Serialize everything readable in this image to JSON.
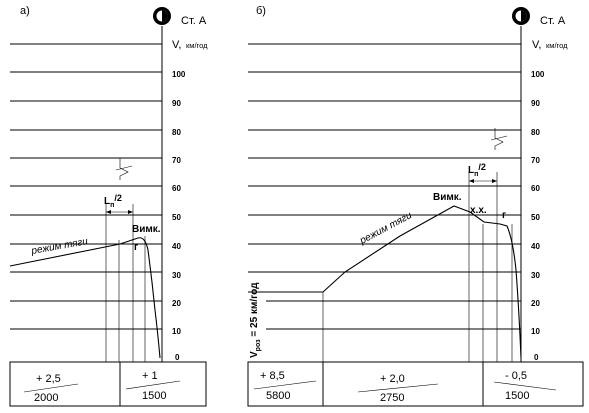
{
  "panels": [
    {
      "label": "а)",
      "station": "Ст. А",
      "axis_title": "V,",
      "axis_unit": "км/год",
      "ticks": [
        "100",
        "90",
        "80",
        "70",
        "60",
        "50",
        "40",
        "30",
        "20",
        "10",
        "0"
      ],
      "Ln_label": "L",
      "Ln_sub": "п",
      "Ln_den": "/2",
      "mode_label": "режим тяги",
      "off_label": "Вимк.",
      "g_label": "г",
      "profile": [
        {
          "slope": "+ 2,5",
          "length": "2000"
        },
        {
          "slope": "+ 1",
          "length": "1500"
        }
      ]
    },
    {
      "label": "б)",
      "station": "Ст. А",
      "axis_title": "V,",
      "axis_unit": "км/год",
      "ticks": [
        "100",
        "90",
        "80",
        "70",
        "60",
        "50",
        "40",
        "30",
        "20",
        "10",
        "0"
      ],
      "Ln_label": "L",
      "Ln_sub": "п",
      "Ln_den": "/2",
      "mode_label": "режим тяги",
      "off_label": "Вимк.",
      "coast_label": "х.х.",
      "g_label": "г",
      "vroz_main": "V",
      "vroz_sub": "роз",
      "vroz_value": " = 25 км/год",
      "profile": [
        {
          "slope": "+ 8,5",
          "length": "5800"
        },
        {
          "slope": "+ 2,0",
          "length": "2750"
        },
        {
          "slope": "- 0,5",
          "length": "1500"
        }
      ]
    }
  ]
}
